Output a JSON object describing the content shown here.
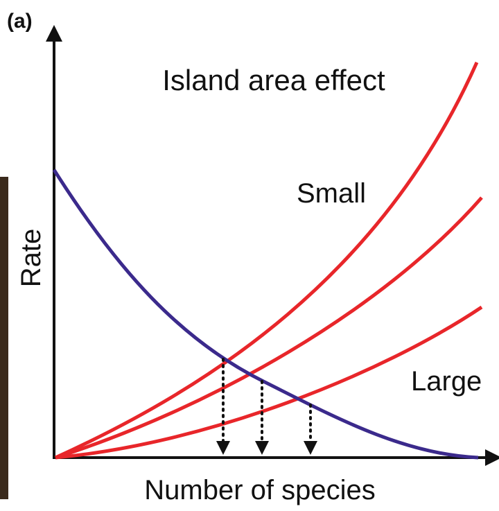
{
  "panel_label": "(a)",
  "title": "Island area effect",
  "curve_labels": {
    "small": "Small",
    "large": "Large"
  },
  "axes": {
    "y": "Rate",
    "x": "Number of species"
  }
}
